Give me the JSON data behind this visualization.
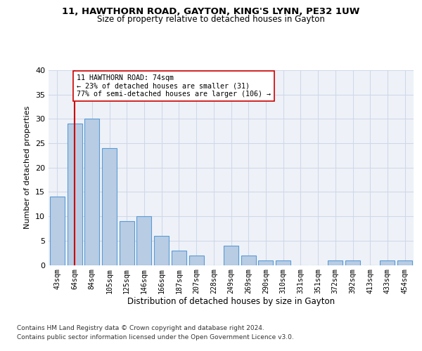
{
  "title1": "11, HAWTHORN ROAD, GAYTON, KING'S LYNN, PE32 1UW",
  "title2": "Size of property relative to detached houses in Gayton",
  "xlabel": "Distribution of detached houses by size in Gayton",
  "ylabel": "Number of detached properties",
  "categories": [
    "43sqm",
    "64sqm",
    "84sqm",
    "105sqm",
    "125sqm",
    "146sqm",
    "166sqm",
    "187sqm",
    "207sqm",
    "228sqm",
    "249sqm",
    "269sqm",
    "290sqm",
    "310sqm",
    "331sqm",
    "351sqm",
    "372sqm",
    "392sqm",
    "413sqm",
    "433sqm",
    "454sqm"
  ],
  "values": [
    14,
    29,
    30,
    24,
    9,
    10,
    6,
    3,
    2,
    0,
    4,
    2,
    1,
    1,
    0,
    0,
    1,
    1,
    0,
    1,
    1
  ],
  "bar_color": "#b8cce4",
  "bar_edgecolor": "#5b9bd5",
  "bar_linewidth": 0.8,
  "grid_color": "#d0d8e8",
  "bg_color": "#eef2f8",
  "property_line_color": "#cc0000",
  "annotation_line1": "11 HAWTHORN ROAD: 74sqm",
  "annotation_line2": "← 23% of detached houses are smaller (31)",
  "annotation_line3": "77% of semi-detached houses are larger (106) →",
  "annotation_box_color": "#ffffff",
  "annotation_box_edgecolor": "#cc0000",
  "footnote1": "Contains HM Land Registry data © Crown copyright and database right 2024.",
  "footnote2": "Contains public sector information licensed under the Open Government Licence v3.0.",
  "ylim": [
    0,
    40
  ],
  "yticks": [
    0,
    5,
    10,
    15,
    20,
    25,
    30,
    35,
    40
  ]
}
